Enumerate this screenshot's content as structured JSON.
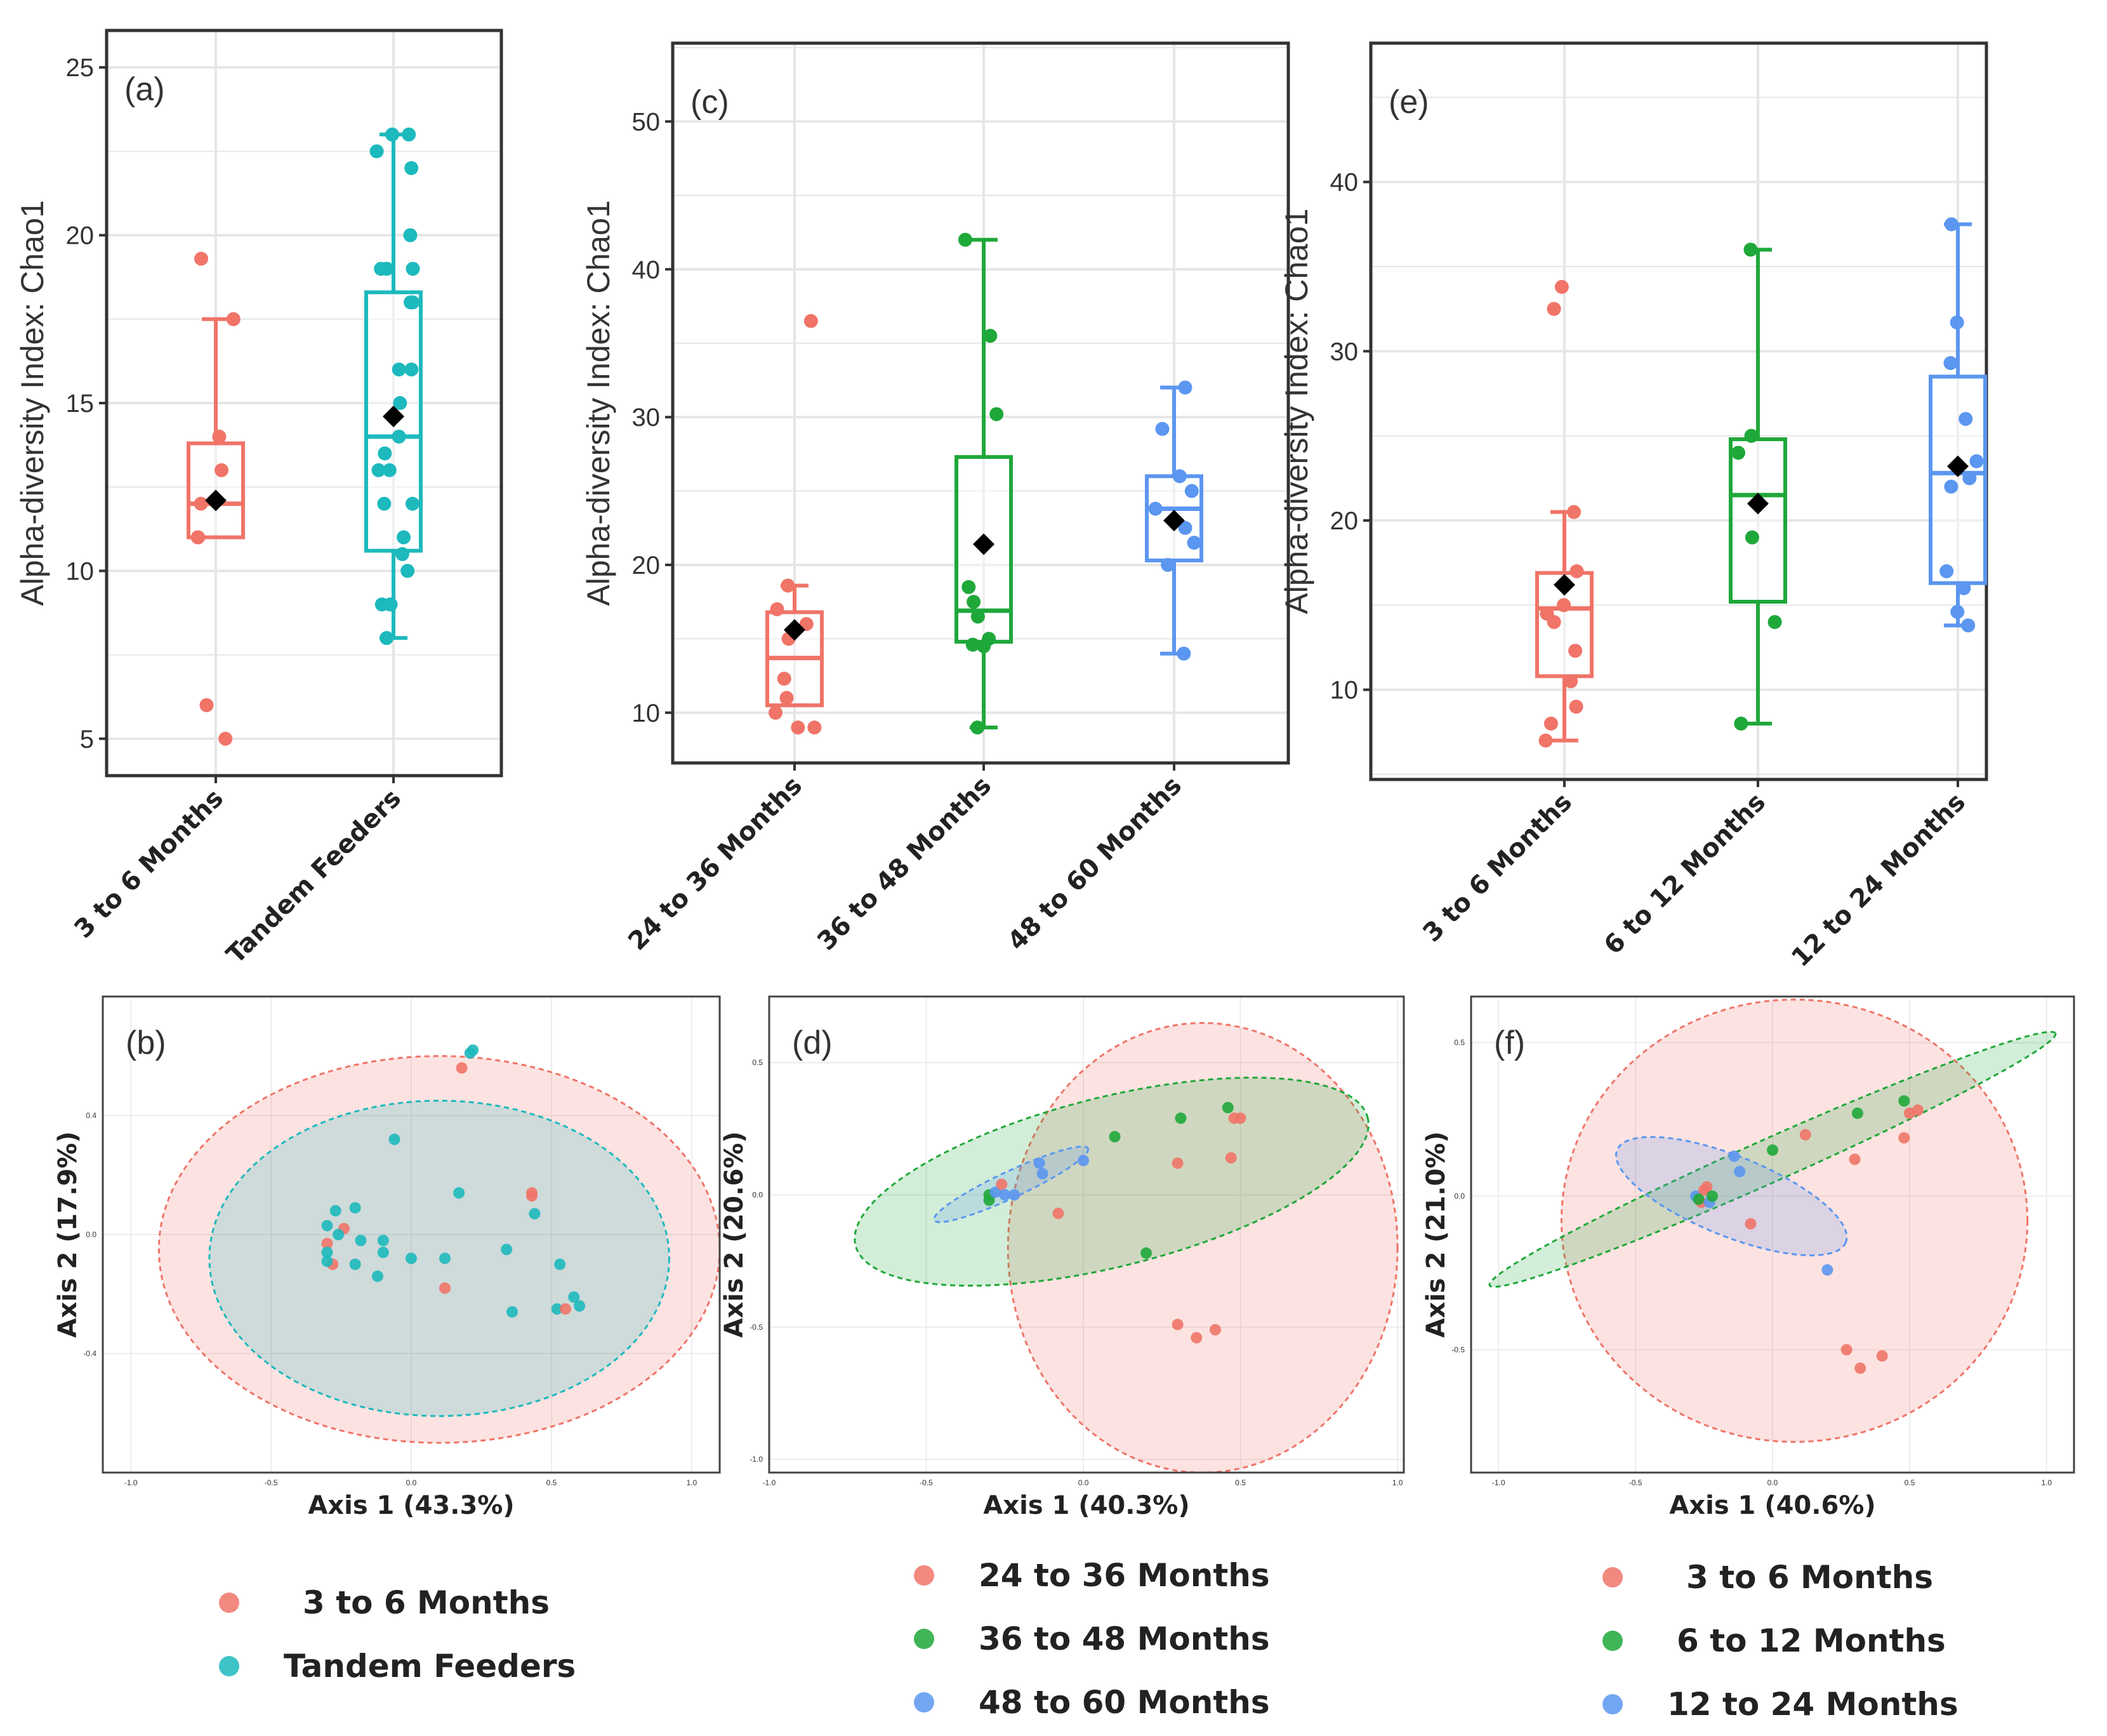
{
  "colors": {
    "red": "#F07468",
    "cyan": "#1DB9BD",
    "green": "#1FA83A",
    "blue": "#5B96F0",
    "mean": "#000000"
  },
  "boxplots": [
    {
      "id": "a",
      "label": "(a)",
      "ylabel": "Alpha-diversity Index: Chao1",
      "ylim": [
        3.9,
        26.1
      ],
      "yticks": [
        5,
        10,
        15,
        20,
        25
      ],
      "groups": [
        {
          "name": "3 to 6 Months",
          "color": "red",
          "min": 11.0,
          "q1": 11.0,
          "median": 12.0,
          "q3": 13.8,
          "max": 17.5,
          "mean": 12.1,
          "points": [
            19.3,
            17.5,
            14.0,
            13.0,
            12.0,
            11.0,
            11.0,
            6.0,
            5.0
          ]
        },
        {
          "name": "Tandem Feeders",
          "color": "cyan",
          "min": 8.0,
          "q1": 10.6,
          "median": 14.0,
          "q3": 18.3,
          "max": 23.0,
          "mean": 14.6,
          "points": [
            23.0,
            23.0,
            22.5,
            22.0,
            20.0,
            19.0,
            19.0,
            19.0,
            18.0,
            18.0,
            16.0,
            16.0,
            15.0,
            14.0,
            13.5,
            13.0,
            13.0,
            12.0,
            12.0,
            11.0,
            10.5,
            10.0,
            9.0,
            9.0,
            9.0,
            8.0
          ]
        }
      ]
    },
    {
      "id": "c",
      "label": "(c)",
      "ylabel": "Alpha-diversity Index: Chao1",
      "ylim": [
        6.6,
        55.3
      ],
      "yticks": [
        10,
        20,
        30,
        40,
        50
      ],
      "groups": [
        {
          "name": "24 to 36 Months",
          "color": "red",
          "min": 10.5,
          "q1": 10.5,
          "median": 13.7,
          "q3": 16.8,
          "max": 18.6,
          "mean": 15.6,
          "points": [
            36.5,
            18.6,
            17.0,
            16.0,
            15.0,
            12.3,
            11.0,
            10.0,
            9.0,
            9.0
          ]
        },
        {
          "name": "36 to 48 Months",
          "color": "green",
          "min": 9.0,
          "q1": 14.8,
          "median": 16.9,
          "q3": 27.3,
          "max": 42.0,
          "mean": 21.4,
          "points": [
            42.0,
            35.5,
            30.2,
            18.5,
            17.5,
            16.5,
            15.0,
            14.6,
            14.5,
            9.0
          ]
        },
        {
          "name": "48 to 60 Months",
          "color": "blue",
          "min": 14.0,
          "q1": 20.3,
          "median": 23.8,
          "q3": 26.0,
          "max": 32.0,
          "mean": 23.0,
          "points": [
            32.0,
            29.2,
            26.0,
            25.0,
            23.8,
            22.5,
            21.5,
            20.0,
            14.0
          ]
        }
      ]
    },
    {
      "id": "e",
      "label": "(e)",
      "ylabel": "Alpha-diversity Index: Chao1",
      "ylim": [
        4.7,
        48.2
      ],
      "yticks": [
        10,
        20,
        30,
        40
      ],
      "groups": [
        {
          "name": "3 to 6 Months",
          "color": "red",
          "min": 7.0,
          "q1": 10.8,
          "median": 14.8,
          "q3": 16.9,
          "max": 20.5,
          "mean": 16.2,
          "points": [
            33.8,
            32.5,
            20.5,
            17.0,
            15.0,
            14.5,
            14.0,
            12.3,
            10.5,
            9.0,
            8.0,
            7.0
          ]
        },
        {
          "name": "6 to 12 Months",
          "color": "green",
          "min": 8.0,
          "q1": 15.2,
          "median": 21.5,
          "q3": 24.8,
          "max": 36.0,
          "mean": 21.0,
          "points": [
            36.0,
            25.0,
            24.0,
            19.0,
            14.0,
            8.0
          ]
        },
        {
          "name": "12 to 24 Months",
          "color": "blue",
          "min": 13.8,
          "q1": 16.3,
          "median": 22.8,
          "q3": 28.5,
          "max": 37.5,
          "mean": 23.2,
          "points": [
            37.5,
            31.7,
            29.3,
            26.0,
            23.5,
            22.5,
            22.0,
            17.0,
            16.0,
            14.6,
            13.8
          ]
        }
      ]
    }
  ],
  "pcoa": [
    {
      "id": "b",
      "label": "(b)",
      "xlabel": "Axis 1 (43.3%)",
      "ylabel": "Axis 2 (17.9%)",
      "xlim": [
        -1.1,
        1.1
      ],
      "ylim": [
        -0.8,
        0.8
      ],
      "xticks": [
        -1.0,
        -0.5,
        0.0,
        0.5,
        1.0
      ],
      "yticks": [
        -0.4,
        0.0,
        0.4
      ],
      "xtick_labels": [
        "-1.0",
        "-0.5",
        "0.0",
        "0.5",
        "1.0"
      ],
      "ytick_labels": [
        "-0.4",
        "0.0",
        "0.4"
      ],
      "ellipses": [
        {
          "color": "red",
          "cx": 0.1,
          "cy": -0.05,
          "rx": 1.0,
          "ry": 0.65,
          "angle": 0
        },
        {
          "color": "cyan",
          "cx": 0.1,
          "cy": -0.08,
          "rx": 0.82,
          "ry": 0.53,
          "angle": 0
        }
      ],
      "points": [
        {
          "x": 0.18,
          "y": 0.56,
          "color": "red"
        },
        {
          "x": 0.21,
          "y": 0.61,
          "color": "cyan"
        },
        {
          "x": 0.22,
          "y": 0.62,
          "color": "cyan"
        },
        {
          "x": -0.06,
          "y": 0.32,
          "color": "cyan"
        },
        {
          "x": 0.17,
          "y": 0.14,
          "color": "cyan"
        },
        {
          "x": 0.43,
          "y": 0.13,
          "color": "red"
        },
        {
          "x": 0.43,
          "y": 0.14,
          "color": "red"
        },
        {
          "x": 0.44,
          "y": 0.07,
          "color": "cyan"
        },
        {
          "x": -0.2,
          "y": 0.09,
          "color": "cyan"
        },
        {
          "x": -0.27,
          "y": 0.08,
          "color": "cyan"
        },
        {
          "x": -0.3,
          "y": 0.03,
          "color": "cyan"
        },
        {
          "x": -0.24,
          "y": 0.02,
          "color": "red"
        },
        {
          "x": -0.26,
          "y": 0.0,
          "color": "cyan"
        },
        {
          "x": -0.3,
          "y": -0.03,
          "color": "red"
        },
        {
          "x": -0.3,
          "y": -0.06,
          "color": "cyan"
        },
        {
          "x": -0.28,
          "y": -0.1,
          "color": "red"
        },
        {
          "x": -0.3,
          "y": -0.09,
          "color": "cyan"
        },
        {
          "x": -0.2,
          "y": -0.1,
          "color": "cyan"
        },
        {
          "x": -0.18,
          "y": -0.02,
          "color": "cyan"
        },
        {
          "x": -0.1,
          "y": -0.06,
          "color": "cyan"
        },
        {
          "x": -0.1,
          "y": -0.02,
          "color": "cyan"
        },
        {
          "x": -0.12,
          "y": -0.14,
          "color": "cyan"
        },
        {
          "x": 0.0,
          "y": -0.08,
          "color": "cyan"
        },
        {
          "x": 0.12,
          "y": -0.08,
          "color": "cyan"
        },
        {
          "x": 0.12,
          "y": -0.18,
          "color": "red"
        },
        {
          "x": 0.34,
          "y": -0.05,
          "color": "cyan"
        },
        {
          "x": 0.53,
          "y": -0.1,
          "color": "cyan"
        },
        {
          "x": 0.58,
          "y": -0.21,
          "color": "cyan"
        },
        {
          "x": 0.6,
          "y": -0.24,
          "color": "cyan"
        },
        {
          "x": 0.52,
          "y": -0.25,
          "color": "cyan"
        },
        {
          "x": 0.55,
          "y": -0.25,
          "color": "red"
        },
        {
          "x": 0.36,
          "y": -0.26,
          "color": "cyan"
        }
      ]
    },
    {
      "id": "d",
      "label": "(d)",
      "xlabel": "Axis 1 (40.3%)",
      "ylabel": "Axis 2 (20.6%)",
      "xlim": [
        -1.0,
        1.02
      ],
      "ylim": [
        -1.05,
        0.75
      ],
      "xticks": [
        -1.0,
        -0.5,
        0.0,
        0.5,
        1.0
      ],
      "yticks": [
        -1.0,
        -0.5,
        0.0,
        0.5
      ],
      "xtick_labels": [
        "-1.0",
        "-0.5",
        "0.0",
        "0.5",
        "1.0"
      ],
      "ytick_labels": [
        "-1.0",
        "-0.5",
        "0.0",
        "0.5"
      ],
      "ellipses": [
        {
          "color": "red",
          "cx": 0.38,
          "cy": -0.2,
          "rx": 0.62,
          "ry": 0.85,
          "angle": 0
        },
        {
          "color": "green",
          "cx": 0.09,
          "cy": 0.05,
          "rx": 0.84,
          "ry": 0.32,
          "angle": 14
        },
        {
          "color": "blue",
          "cx": -0.23,
          "cy": 0.04,
          "rx": 0.27,
          "ry": 0.05,
          "angle": 25
        }
      ],
      "points": [
        {
          "x": -0.3,
          "y": 0.0,
          "color": "green"
        },
        {
          "x": -0.3,
          "y": -0.02,
          "color": "green"
        },
        {
          "x": -0.28,
          "y": 0.01,
          "color": "blue"
        },
        {
          "x": -0.26,
          "y": 0.04,
          "color": "red"
        },
        {
          "x": -0.25,
          "y": 0.0,
          "color": "blue"
        },
        {
          "x": -0.22,
          "y": 0.0,
          "color": "blue"
        },
        {
          "x": -0.14,
          "y": 0.12,
          "color": "blue"
        },
        {
          "x": -0.13,
          "y": 0.08,
          "color": "blue"
        },
        {
          "x": 0.0,
          "y": 0.13,
          "color": "blue"
        },
        {
          "x": -0.08,
          "y": -0.07,
          "color": "red"
        },
        {
          "x": 0.1,
          "y": 0.22,
          "color": "green"
        },
        {
          "x": 0.31,
          "y": 0.29,
          "color": "green"
        },
        {
          "x": 0.46,
          "y": 0.33,
          "color": "green"
        },
        {
          "x": 0.48,
          "y": 0.29,
          "color": "red"
        },
        {
          "x": 0.5,
          "y": 0.29,
          "color": "red"
        },
        {
          "x": 0.3,
          "y": 0.12,
          "color": "red"
        },
        {
          "x": 0.47,
          "y": 0.14,
          "color": "red"
        },
        {
          "x": 0.2,
          "y": -0.22,
          "color": "green"
        },
        {
          "x": 0.3,
          "y": -0.49,
          "color": "red"
        },
        {
          "x": 0.36,
          "y": -0.54,
          "color": "red"
        },
        {
          "x": 0.42,
          "y": -0.51,
          "color": "red"
        }
      ]
    },
    {
      "id": "f",
      "label": "(f)",
      "xlabel": "Axis 1 (40.6%)",
      "ylabel": "Axis 2 (21.0%)",
      "xlim": [
        -1.1,
        1.1
      ],
      "ylim": [
        -0.9,
        0.65
      ],
      "xticks": [
        -1.0,
        -0.5,
        0.0,
        0.5,
        1.0
      ],
      "yticks": [
        -0.5,
        0.0,
        0.5
      ],
      "xtick_labels": [
        "-1.0",
        "-0.5",
        "0.0",
        "0.5",
        "1.0"
      ],
      "ytick_labels": [
        "-0.5",
        "0.0",
        "0.5"
      ],
      "ellipses": [
        {
          "color": "red",
          "cx": 0.08,
          "cy": -0.08,
          "rx": 0.85,
          "ry": 0.72,
          "angle": 0
        },
        {
          "color": "green",
          "cx": 0.0,
          "cy": 0.12,
          "rx": 1.13,
          "ry": 0.07,
          "angle": 24
        },
        {
          "color": "blue",
          "cx": -0.15,
          "cy": 0.0,
          "rx": 0.45,
          "ry": 0.13,
          "angle": -22
        }
      ],
      "points": [
        {
          "x": -0.28,
          "y": 0.0,
          "color": "blue"
        },
        {
          "x": -0.26,
          "y": -0.02,
          "color": "red"
        },
        {
          "x": -0.25,
          "y": 0.02,
          "color": "red"
        },
        {
          "x": -0.24,
          "y": 0.03,
          "color": "red"
        },
        {
          "x": -0.23,
          "y": -0.02,
          "color": "blue"
        },
        {
          "x": -0.22,
          "y": 0.0,
          "color": "green"
        },
        {
          "x": -0.27,
          "y": -0.01,
          "color": "green"
        },
        {
          "x": -0.14,
          "y": 0.13,
          "color": "blue"
        },
        {
          "x": -0.12,
          "y": 0.08,
          "color": "blue"
        },
        {
          "x": 0.0,
          "y": 0.15,
          "color": "green"
        },
        {
          "x": 0.12,
          "y": 0.2,
          "color": "red"
        },
        {
          "x": -0.08,
          "y": -0.09,
          "color": "red"
        },
        {
          "x": 0.31,
          "y": 0.27,
          "color": "green"
        },
        {
          "x": 0.48,
          "y": 0.31,
          "color": "green"
        },
        {
          "x": 0.5,
          "y": 0.27,
          "color": "red"
        },
        {
          "x": 0.53,
          "y": 0.28,
          "color": "red"
        },
        {
          "x": 0.3,
          "y": 0.12,
          "color": "red"
        },
        {
          "x": 0.48,
          "y": 0.19,
          "color": "red"
        },
        {
          "x": 0.2,
          "y": -0.24,
          "color": "blue"
        },
        {
          "x": 0.27,
          "y": -0.5,
          "color": "red"
        },
        {
          "x": 0.32,
          "y": -0.56,
          "color": "red"
        },
        {
          "x": 0.4,
          "y": -0.52,
          "color": "red"
        }
      ]
    }
  ],
  "legends": [
    {
      "id": "b",
      "items": [
        {
          "label": "3 to 6 Months",
          "color": "red"
        },
        {
          "label": "Tandem Feeders",
          "color": "cyan"
        }
      ]
    },
    {
      "id": "d",
      "items": [
        {
          "label": "24 to 36 Months",
          "color": "red"
        },
        {
          "label": "36 to 48 Months",
          "color": "green"
        },
        {
          "label": "48 to 60 Months",
          "color": "blue"
        }
      ]
    },
    {
      "id": "f",
      "items": [
        {
          "label": "3 to 6 Months",
          "color": "red"
        },
        {
          "label": "6 to 12 Months",
          "color": "green"
        },
        {
          "label": "12 to 24 Months",
          "color": "blue"
        }
      ]
    }
  ]
}
